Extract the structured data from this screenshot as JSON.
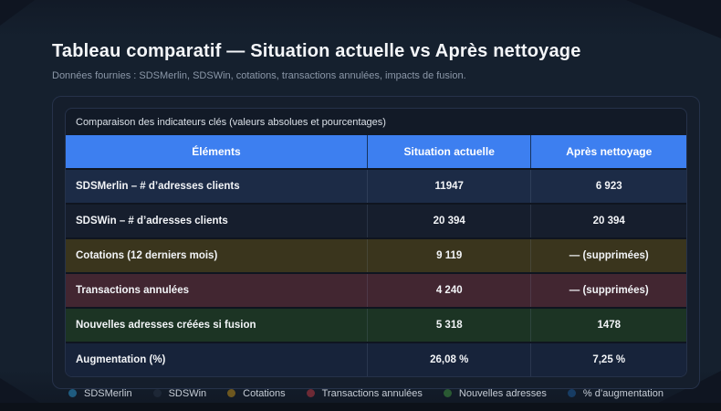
{
  "page": {
    "title": "Tableau comparatif — Situation actuelle vs Après nettoyage",
    "subtitle": "Données fournies : SDSMerlin, SDSWin, cotations, transactions annulées, impacts de fusion."
  },
  "theme": {
    "page_background": "#15202e",
    "card_background": "#151e2c",
    "header_blue": "#3d7ff0",
    "title_color": "#f4f6f9",
    "subtitle_color": "#8b97a8"
  },
  "table": {
    "caption": "Comparaison des indicateurs clés (valeurs absolues et pourcentages)",
    "columns": [
      "Éléments",
      "Situation actuelle",
      "Après nettoyage"
    ],
    "rows": [
      {
        "label": "SDSMerlin – # d’adresses clients",
        "current": "11947",
        "after": "6 923",
        "bg": "#1c2b46"
      },
      {
        "label": "SDSWin – # d’adresses clients",
        "current": "20 394",
        "after": "20 394",
        "bg": "#161e2d"
      },
      {
        "label": "Cotations (12 derniers mois)",
        "current": "9 119",
        "after": "— (supprimées)",
        "bg": "#3a351d"
      },
      {
        "label": "Transactions annulées",
        "current": "4 240",
        "after": "— (supprimées)",
        "bg": "#422631"
      },
      {
        "label": "Nouvelles adresses créées si fusion",
        "current": "5 318",
        "after": "1478",
        "bg": "#1c3424"
      },
      {
        "label": "Augmentation (%)",
        "current": "26,08 %",
        "after": "7,25 %",
        "bg": "#17233a"
      }
    ]
  },
  "legend": {
    "items": [
      {
        "label": "SDSMerlin",
        "color": "#1f5c80"
      },
      {
        "label": "SDSWin",
        "color": "#1d2736"
      },
      {
        "label": "Cotations",
        "color": "#6d571f"
      },
      {
        "label": "Transactions annulées",
        "color": "#6d2a35"
      },
      {
        "label": "Nouvelles adresses",
        "color": "#2a5a33"
      },
      {
        "label": "% d’augmentation",
        "color": "#173c63"
      }
    ]
  }
}
